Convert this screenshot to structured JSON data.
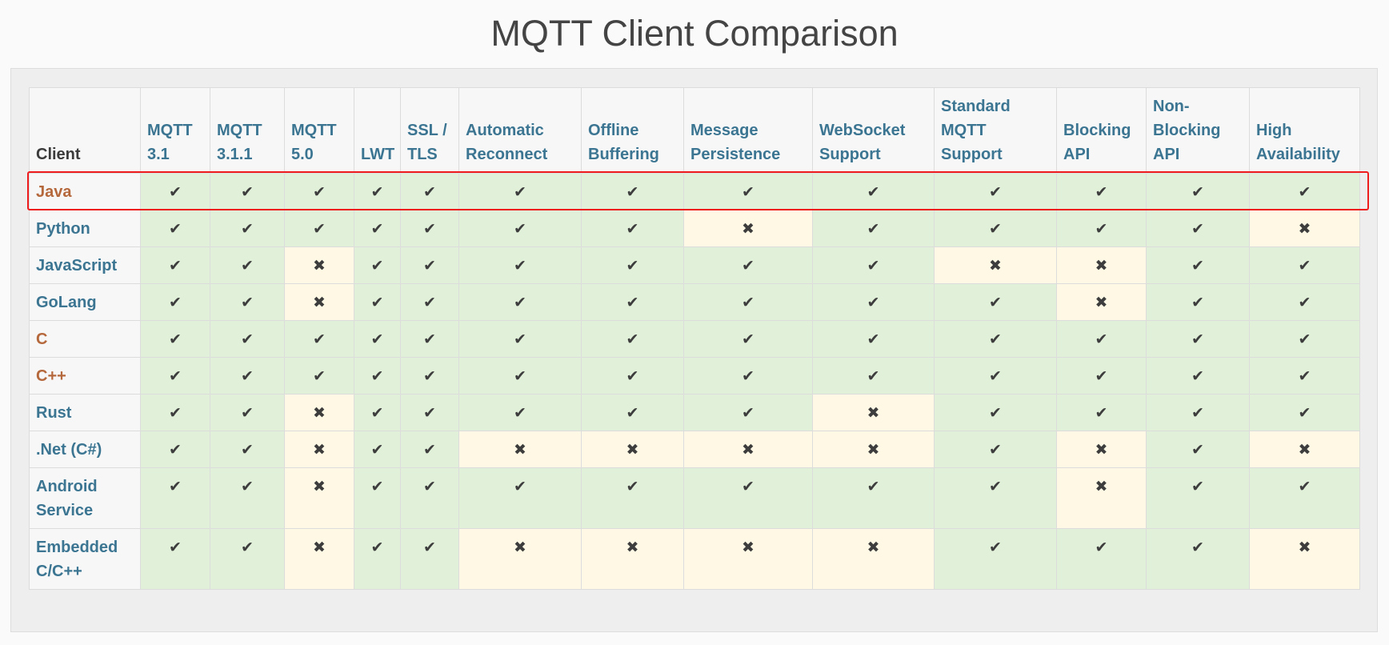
{
  "page": {
    "title": "MQTT Client Comparison"
  },
  "table": {
    "headers": [
      "Client",
      "MQTT 3.1",
      "MQTT 3.1.1",
      "MQTT 5.0",
      "LWT",
      "SSL / TLS",
      "Automatic Reconnect",
      "Offline Buffering",
      "Message Persistence",
      "WebSocket Support",
      "Standard MQTT Support",
      "Blocking API",
      "Non-Blocking API",
      "High Availability"
    ],
    "rows": [
      {
        "client": "Java",
        "values": [
          true,
          true,
          true,
          true,
          true,
          true,
          true,
          true,
          true,
          true,
          true,
          true,
          true
        ]
      },
      {
        "client": "Python",
        "values": [
          true,
          true,
          true,
          true,
          true,
          true,
          true,
          false,
          true,
          true,
          true,
          true,
          false
        ]
      },
      {
        "client": "JavaScript",
        "values": [
          true,
          true,
          false,
          true,
          true,
          true,
          true,
          true,
          true,
          false,
          false,
          true,
          true
        ]
      },
      {
        "client": "GoLang",
        "values": [
          true,
          true,
          false,
          true,
          true,
          true,
          true,
          true,
          true,
          true,
          false,
          true,
          true
        ]
      },
      {
        "client": "C",
        "values": [
          true,
          true,
          true,
          true,
          true,
          true,
          true,
          true,
          true,
          true,
          true,
          true,
          true
        ]
      },
      {
        "client": "C++",
        "values": [
          true,
          true,
          true,
          true,
          true,
          true,
          true,
          true,
          true,
          true,
          true,
          true,
          true
        ]
      },
      {
        "client": "Rust",
        "values": [
          true,
          true,
          false,
          true,
          true,
          true,
          true,
          true,
          false,
          true,
          true,
          true,
          true
        ]
      },
      {
        "client": ".Net (C#)",
        "values": [
          true,
          true,
          false,
          true,
          true,
          false,
          false,
          false,
          false,
          true,
          false,
          true,
          false
        ]
      },
      {
        "client": "Android Service",
        "values": [
          true,
          true,
          false,
          true,
          true,
          true,
          true,
          true,
          true,
          true,
          false,
          true,
          true
        ]
      },
      {
        "client": "Embedded C/C++",
        "values": [
          true,
          true,
          false,
          true,
          true,
          false,
          false,
          false,
          false,
          true,
          true,
          true,
          false
        ]
      }
    ]
  },
  "icons": {
    "yes": "check-icon",
    "no": "cross-icon"
  },
  "colors": {
    "yes_background": "#e1f0d9",
    "no_background": "#fef8e4",
    "header_link": "#3b7592",
    "client_orange": "#b5683c",
    "highlight_border": "#ee1c1c"
  }
}
